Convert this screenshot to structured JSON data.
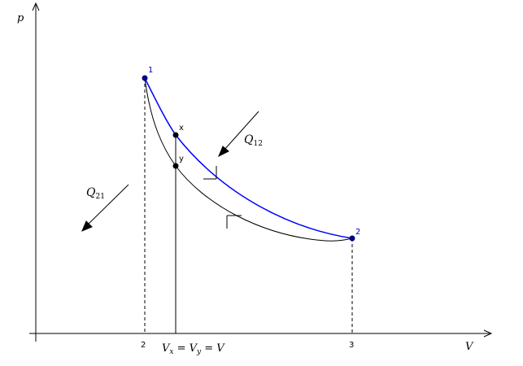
{
  "axes": {
    "y_label": "p",
    "x_label": "V"
  },
  "points": {
    "p1": "1",
    "p2": "2",
    "px": "x",
    "py": "y"
  },
  "ticks": {
    "v2": "2",
    "v3": "3",
    "v_eq": "V_x = V_y = V"
  },
  "heat": {
    "q12": "Q12",
    "q21": "Q21"
  },
  "colors": {
    "upper_curve": "#0000ff",
    "lower_curve": "#000000",
    "point_fill_1_2": "#000080"
  }
}
